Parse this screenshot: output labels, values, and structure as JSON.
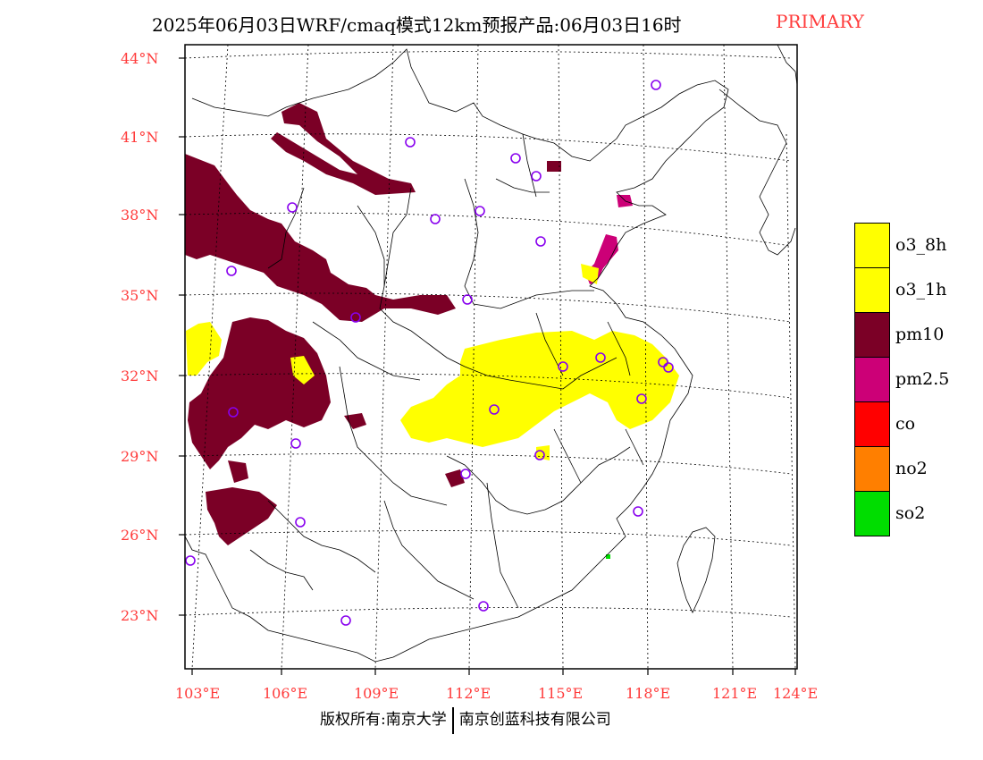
{
  "header": {
    "title": "2025年06月03日WRF/cmaq模式12km预报产品:06月03日16时",
    "primary_label": "PRIMARY",
    "primary_color": "#ff3b3b"
  },
  "axes": {
    "lat_labels": [
      "44°N",
      "41°N",
      "38°N",
      "35°N",
      "32°N",
      "29°N",
      "26°N",
      "23°N"
    ],
    "lon_labels": [
      "103°E",
      "106°E",
      "109°E",
      "112°E",
      "115°E",
      "118°E",
      "121°E",
      "124°E"
    ],
    "label_color": "#ff3b3b"
  },
  "legend": {
    "items": [
      {
        "label": "o3_8h",
        "color": "#ffff00"
      },
      {
        "label": "o3_1h",
        "color": "#ffff00"
      },
      {
        "label": "pm10",
        "color": "#7b0026"
      },
      {
        "label": "pm2.5",
        "color": "#cc0077"
      },
      {
        "label": "co",
        "color": "#ff0000"
      },
      {
        "label": "no2",
        "color": "#ff7f00"
      },
      {
        "label": "so2",
        "color": "#00dd00"
      }
    ]
  },
  "footer": {
    "copyright": "版权所有:南京大学",
    "company": "南京创蓝科技有限公司"
  }
}
